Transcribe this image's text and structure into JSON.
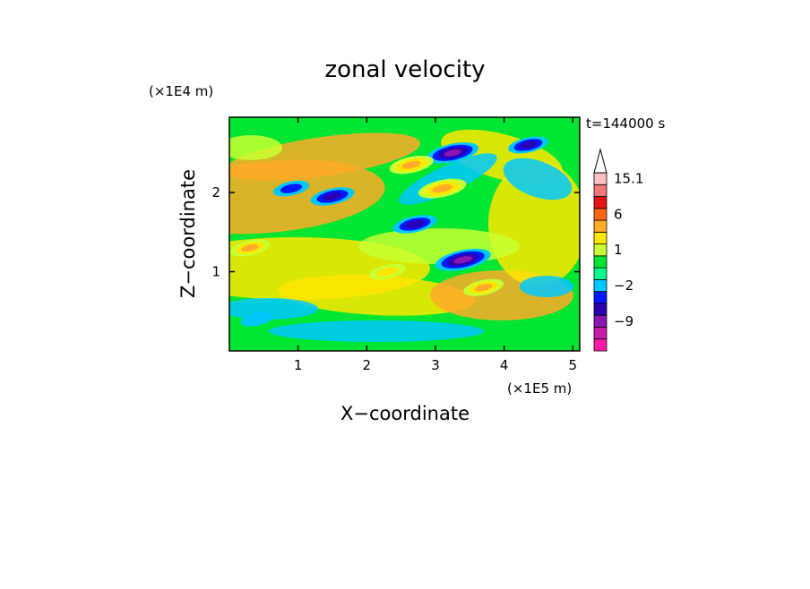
{
  "chart_data": {
    "type": "heatmap",
    "title": "zonal velocity",
    "xlabel": "X−coordinate",
    "ylabel": "Z−coordinate",
    "x_unit": "(×1E5 m)",
    "y_unit": "(×1E4 m)",
    "time_label": "t=144000 s",
    "xlim": [
      0.0,
      5.1
    ],
    "ylim": [
      0.0,
      2.95
    ],
    "x_ticks": [
      1,
      2,
      3,
      4,
      5
    ],
    "y_ticks": [
      1,
      2
    ],
    "x_tick_labels": [
      "1",
      "2",
      "3",
      "4",
      "5"
    ],
    "y_tick_labels": [
      "1",
      "2"
    ],
    "colorbar": {
      "levels": [
        -15,
        -12,
        -9,
        -6,
        -3,
        -2,
        -1,
        0,
        1,
        2,
        3,
        6,
        9,
        12,
        15.1
      ],
      "colors": [
        "#ff1aa8",
        "#c81aa8",
        "#8c16b4",
        "#2b00b4",
        "#0018ff",
        "#00c8ff",
        "#00ff8c",
        "#00e632",
        "#c8ff32",
        "#ffe600",
        "#ffaa28",
        "#ff6414",
        "#e61414",
        "#f07878",
        "#ffc0c0"
      ],
      "labels": [
        {
          "value": 15.1,
          "text": "15.1"
        },
        {
          "value": 6,
          "text": "6"
        },
        {
          "value": 1,
          "text": "1"
        },
        {
          "value": -2,
          "text": "−2"
        },
        {
          "value": -9,
          "text": "−9"
        }
      ],
      "extend": "max"
    },
    "features": [
      {
        "x": 3.25,
        "z": 2.5,
        "value": -7
      },
      {
        "x": 3.4,
        "z": 1.15,
        "value": -8
      },
      {
        "x": 2.7,
        "z": 1.6,
        "value": -5
      },
      {
        "x": 1.5,
        "z": 1.95,
        "value": -5
      },
      {
        "x": 0.9,
        "z": 2.05,
        "value": -3
      },
      {
        "x": 4.35,
        "z": 2.6,
        "value": -4
      },
      {
        "x": 3.1,
        "z": 2.05,
        "value": 6
      },
      {
        "x": 2.65,
        "z": 2.35,
        "value": 5
      },
      {
        "x": 0.3,
        "z": 1.3,
        "value": 4
      },
      {
        "x": 3.7,
        "z": 0.8,
        "value": 4
      },
      {
        "x": 0.4,
        "z": 0.4,
        "value": -2
      },
      {
        "x": 2.3,
        "z": 1.0,
        "value": 3
      }
    ]
  }
}
